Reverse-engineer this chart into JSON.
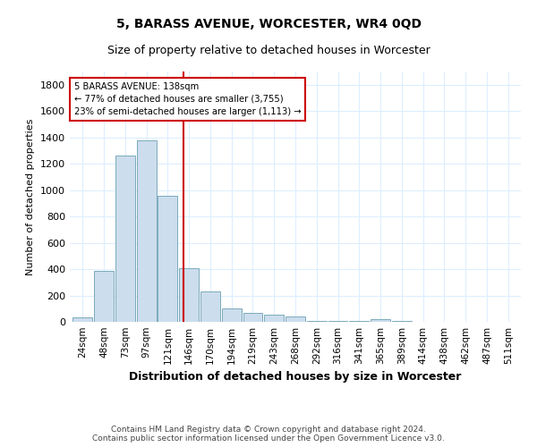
{
  "title": "5, BARASS AVENUE, WORCESTER, WR4 0QD",
  "subtitle": "Size of property relative to detached houses in Worcester",
  "xlabel": "Distribution of detached houses by size in Worcester",
  "ylabel": "Number of detached properties",
  "bar_color": "#ccdded",
  "bar_edge_color": "#7aaabb",
  "grid_color": "#ddeeff",
  "background_color": "#ffffff",
  "categories": [
    "24sqm",
    "48sqm",
    "73sqm",
    "97sqm",
    "121sqm",
    "146sqm",
    "170sqm",
    "194sqm",
    "219sqm",
    "243sqm",
    "268sqm",
    "292sqm",
    "316sqm",
    "341sqm",
    "365sqm",
    "389sqm",
    "414sqm",
    "438sqm",
    "462sqm",
    "487sqm",
    "511sqm"
  ],
  "values": [
    35,
    390,
    1260,
    1380,
    960,
    410,
    230,
    100,
    70,
    55,
    40,
    10,
    5,
    5,
    20,
    5,
    0,
    0,
    0,
    0,
    0
  ],
  "vline_x": 4.75,
  "vline_color": "#cc0000",
  "annotation_text": "5 BARASS AVENUE: 138sqm\n← 77% of detached houses are smaller (3,755)\n23% of semi-detached houses are larger (1,113) →",
  "ylim": [
    0,
    1900
  ],
  "yticks": [
    0,
    200,
    400,
    600,
    800,
    1000,
    1200,
    1400,
    1600,
    1800
  ],
  "footnote": "Contains HM Land Registry data © Crown copyright and database right 2024.\nContains public sector information licensed under the Open Government Licence v3.0."
}
